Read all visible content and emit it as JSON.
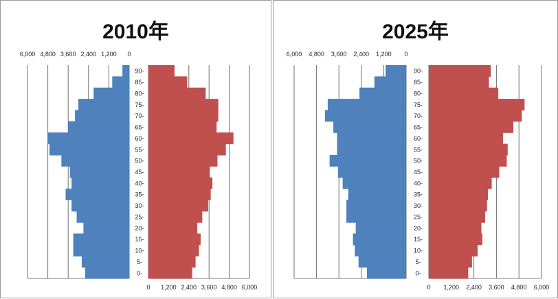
{
  "colors": {
    "male": "#4f81bd",
    "female": "#c0504d",
    "grid": "#6f6f6f",
    "axis": "#7f7f7f"
  },
  "chart_data": [
    {
      "type": "bar",
      "title": "2010年",
      "age_labels": [
        "0-",
        "5-",
        "10-",
        "15-",
        "20-",
        "25-",
        "30-",
        "35-",
        "40-",
        "45-",
        "50-",
        "55-",
        "60-",
        "65-",
        "70-",
        "75-",
        "80-",
        "85-",
        "90-"
      ],
      "male_tick_labels": [
        "6,000",
        "4,800",
        "3,600",
        "2,400",
        "1,200",
        "0"
      ],
      "female_tick_labels": [
        "0",
        "1,200",
        "2,400",
        "3,600",
        "4,800",
        "6,000"
      ],
      "xlim": [
        0,
        6000
      ],
      "series": [
        {
          "values": [
            2600,
            2800,
            3300,
            3300,
            2700,
            3100,
            3400,
            3750,
            3400,
            3500,
            4000,
            4700,
            4800,
            3600,
            3200,
            3000,
            2100,
            1000,
            400
          ]
        },
        {
          "values": [
            2600,
            2800,
            3000,
            3100,
            2900,
            3200,
            3550,
            3700,
            3800,
            3650,
            4100,
            4600,
            5050,
            4050,
            4150,
            4150,
            3400,
            2300,
            1550
          ]
        }
      ]
    },
    {
      "type": "bar",
      "title": "2025年",
      "age_labels": [
        "0-",
        "5-",
        "10-",
        "15-",
        "20-",
        "25-",
        "30-",
        "35-",
        "40-",
        "45-",
        "50-",
        "55-",
        "60-",
        "65-",
        "70-",
        "75-",
        "80-",
        "85-",
        "90-"
      ],
      "male_tick_labels": [
        "6,000",
        "4,800",
        "3,600",
        "2,400",
        "1,200",
        "0"
      ],
      "female_tick_labels": [
        "0",
        "1,200",
        "2,400",
        "3,600",
        "4,800",
        "6,000"
      ],
      "xlim": [
        0,
        6000
      ],
      "series": [
        {
          "values": [
            2100,
            2550,
            2750,
            2850,
            2700,
            3200,
            3200,
            3100,
            3400,
            3650,
            4100,
            3700,
            3700,
            3900,
            4350,
            4200,
            2500,
            1700,
            1100
          ]
        },
        {
          "values": [
            2100,
            2300,
            2600,
            2850,
            2800,
            3000,
            3100,
            3150,
            3350,
            3750,
            4150,
            4200,
            3950,
            4500,
            4950,
            5100,
            3700,
            3200,
            3300
          ]
        }
      ]
    }
  ]
}
